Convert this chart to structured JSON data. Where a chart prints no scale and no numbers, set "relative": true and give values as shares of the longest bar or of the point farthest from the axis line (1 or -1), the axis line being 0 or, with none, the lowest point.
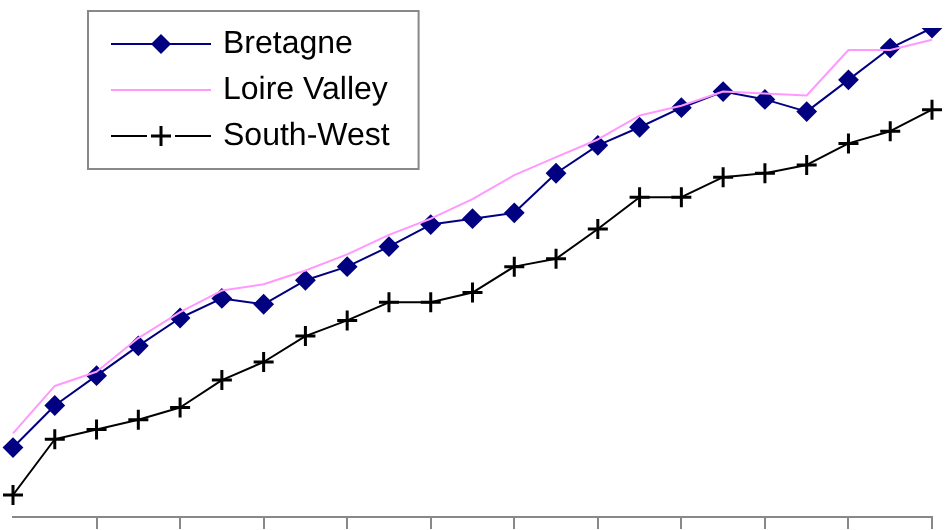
{
  "chart_data": {
    "type": "line",
    "relative": true,
    "legend": "top left",
    "tick_labels": false,
    "grid": false,
    "categories": [
      null,
      null,
      null,
      null,
      null,
      null,
      null,
      null,
      null,
      null,
      null,
      null,
      null,
      null,
      null,
      null,
      null,
      null,
      null,
      null,
      null,
      null,
      null
    ],
    "series": [
      {
        "name": "Bretagne",
        "color": "#000080",
        "marker": "diamond",
        "values": [
          0.142,
          0.228,
          0.289,
          0.35,
          0.407,
          0.447,
          0.435,
          0.484,
          0.512,
          0.553,
          0.598,
          0.61,
          0.622,
          0.703,
          0.76,
          0.797,
          0.837,
          0.87,
          0.854,
          0.829,
          0.894,
          0.959,
          1
        ]
      },
      {
        "name": "Loire Valley",
        "color": "#ff99ff",
        "marker": "none",
        "values": [
          0.171,
          0.268,
          0.297,
          0.366,
          0.419,
          0.463,
          0.476,
          0.504,
          0.537,
          0.577,
          0.61,
          0.65,
          0.699,
          0.736,
          0.772,
          0.821,
          0.841,
          0.87,
          0.866,
          0.862,
          0.955,
          0.955,
          0.976
        ]
      },
      {
        "name": "South-West",
        "color": "#000000",
        "marker": "cross",
        "values": [
          0.045,
          0.159,
          0.179,
          0.199,
          0.224,
          0.28,
          0.317,
          0.37,
          0.402,
          0.439,
          0.439,
          0.459,
          0.512,
          0.528,
          0.589,
          0.654,
          0.654,
          0.695,
          0.703,
          0.72,
          0.764,
          0.789,
          0.833
        ]
      }
    ]
  }
}
